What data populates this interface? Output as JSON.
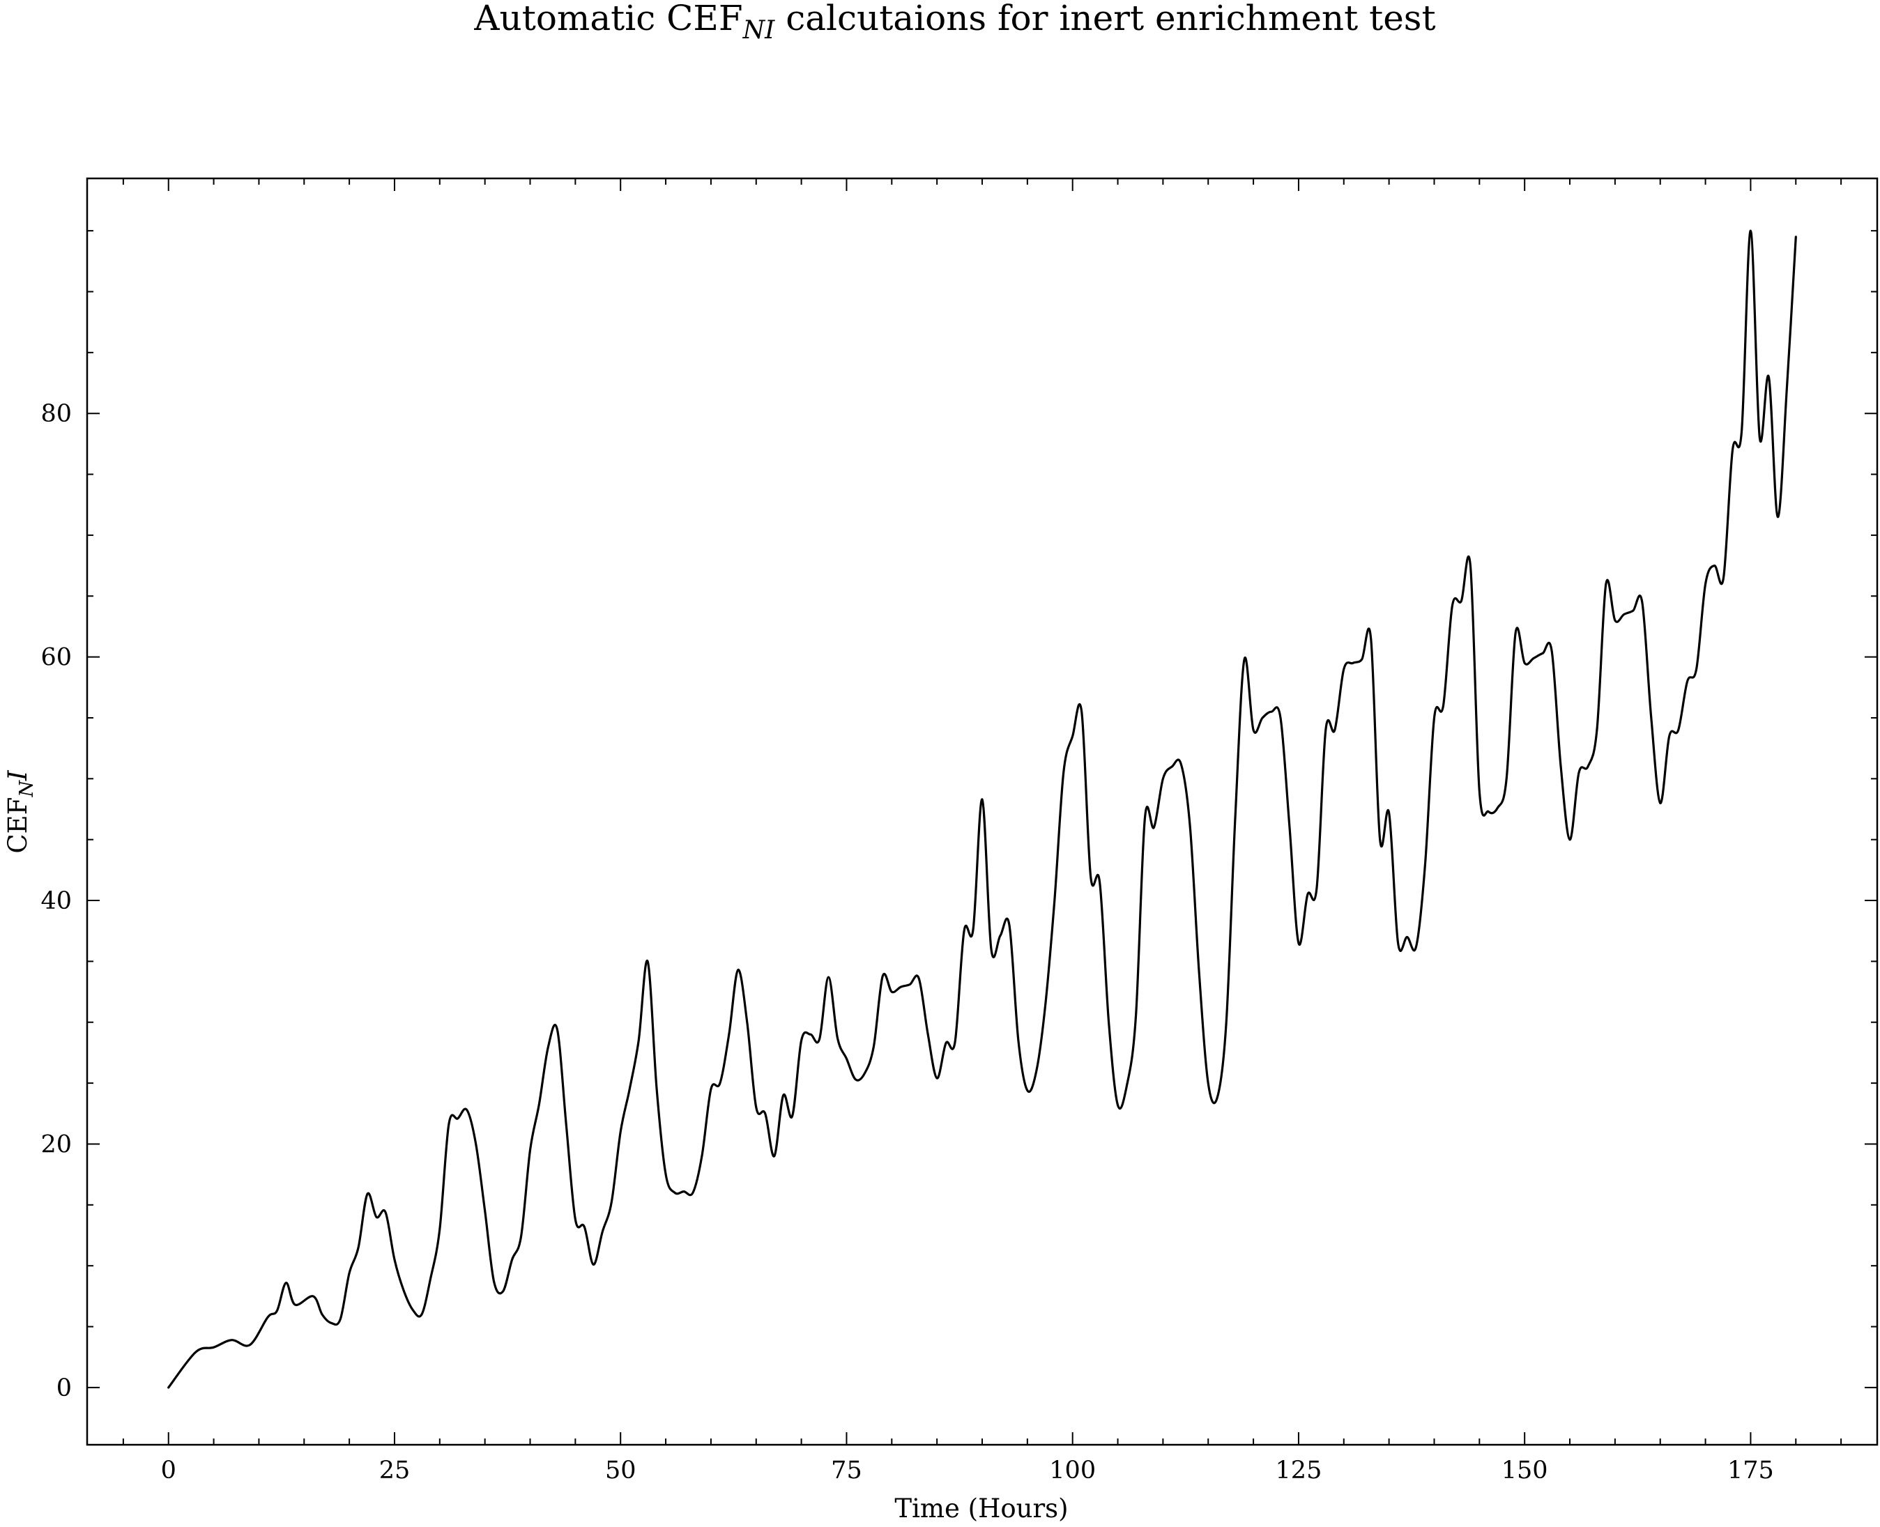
{
  "chart_data": {
    "type": "line",
    "title": "Automatic CEF",
    "title_subscript": "NI",
    "title_suffix": " calcutaions for inert enrichment test",
    "xlabel": "Time (Hours)",
    "ylabel": "CEF",
    "ylabel_subscript": "N",
    "ylabel_suffix": "I",
    "xlim": [
      -9,
      189
    ],
    "ylim": [
      -4.7,
      99.3
    ],
    "xticks": [
      0,
      25,
      50,
      75,
      100,
      125,
      150,
      175
    ],
    "yticks": [
      0,
      20,
      40,
      60,
      80
    ],
    "grid": false,
    "legend": "none",
    "series": [
      {
        "color": "#000000",
        "points": [
          [
            0,
            0
          ],
          [
            3,
            2.9
          ],
          [
            5,
            3.3
          ],
          [
            7,
            3.9
          ],
          [
            9,
            3.5
          ],
          [
            11,
            5.8
          ],
          [
            12,
            6.3
          ],
          [
            13,
            8.6
          ],
          [
            14,
            6.8
          ],
          [
            16,
            7.5
          ],
          [
            17,
            6.0
          ],
          [
            18,
            5.3
          ],
          [
            19,
            5.6
          ],
          [
            20,
            9.4
          ],
          [
            21,
            11.5
          ],
          [
            22,
            15.9
          ],
          [
            23,
            14.0
          ],
          [
            24,
            14.4
          ],
          [
            25,
            10.5
          ],
          [
            26,
            8.0
          ],
          [
            27,
            6.4
          ],
          [
            28,
            6.0
          ],
          [
            29,
            9.0
          ],
          [
            30,
            13.0
          ],
          [
            31,
            21.6
          ],
          [
            32,
            22.1
          ],
          [
            33,
            22.8
          ],
          [
            34,
            20.0
          ],
          [
            35,
            14.5
          ],
          [
            36,
            8.7
          ],
          [
            37,
            7.9
          ],
          [
            38,
            10.5
          ],
          [
            39,
            12.4
          ],
          [
            40,
            19.5
          ],
          [
            41,
            23.3
          ],
          [
            42,
            28.0
          ],
          [
            43,
            29.4
          ],
          [
            44,
            21.5
          ],
          [
            45,
            13.8
          ],
          [
            46,
            13.2
          ],
          [
            47,
            10.1
          ],
          [
            48,
            12.8
          ],
          [
            49,
            15.2
          ],
          [
            50,
            21.0
          ],
          [
            51,
            24.5
          ],
          [
            52,
            28.5
          ],
          [
            53,
            35.0
          ],
          [
            54,
            24.5
          ],
          [
            55,
            17.5
          ],
          [
            56,
            16.0
          ],
          [
            57,
            16.1
          ],
          [
            58,
            16.0
          ],
          [
            59,
            19.0
          ],
          [
            60,
            24.5
          ],
          [
            61,
            25.0
          ],
          [
            62,
            29.0
          ],
          [
            63,
            34.3
          ],
          [
            64,
            30.0
          ],
          [
            65,
            23.0
          ],
          [
            66,
            22.5
          ],
          [
            67,
            19.0
          ],
          [
            68,
            24.0
          ],
          [
            69,
            22.3
          ],
          [
            70,
            28.5
          ],
          [
            71,
            29.0
          ],
          [
            72,
            28.6
          ],
          [
            73,
            33.7
          ],
          [
            74,
            28.7
          ],
          [
            75,
            27.0
          ],
          [
            76,
            25.3
          ],
          [
            77,
            25.8
          ],
          [
            78,
            28.0
          ],
          [
            79,
            33.8
          ],
          [
            80,
            32.5
          ],
          [
            81,
            32.9
          ],
          [
            82,
            33.1
          ],
          [
            83,
            33.6
          ],
          [
            84,
            29.0
          ],
          [
            85,
            25.4
          ],
          [
            86,
            28.3
          ],
          [
            87,
            28.4
          ],
          [
            88,
            37.5
          ],
          [
            89,
            37.6
          ],
          [
            90,
            48.3
          ],
          [
            91,
            36.0
          ],
          [
            92,
            37.1
          ],
          [
            93,
            38.0
          ],
          [
            94,
            28.5
          ],
          [
            95,
            24.4
          ],
          [
            96,
            26.0
          ],
          [
            97,
            31.5
          ],
          [
            98,
            40.0
          ],
          [
            99,
            50.5
          ],
          [
            100,
            53.5
          ],
          [
            101,
            55.5
          ],
          [
            102,
            42.0
          ],
          [
            103,
            41.5
          ],
          [
            104,
            30.0
          ],
          [
            105,
            23.2
          ],
          [
            106,
            24.8
          ],
          [
            107,
            30.5
          ],
          [
            108,
            46.8
          ],
          [
            109,
            46.0
          ],
          [
            110,
            50.0
          ],
          [
            111,
            51.0
          ],
          [
            112,
            51.2
          ],
          [
            113,
            46.0
          ],
          [
            114,
            34.0
          ],
          [
            115,
            25.0
          ],
          [
            116,
            23.8
          ],
          [
            117,
            30.0
          ],
          [
            118,
            47.0
          ],
          [
            119,
            59.8
          ],
          [
            120,
            54.0
          ],
          [
            121,
            55.0
          ],
          [
            122,
            55.5
          ],
          [
            123,
            55.0
          ],
          [
            124,
            46.0
          ],
          [
            125,
            36.5
          ],
          [
            126,
            40.5
          ],
          [
            127,
            41.0
          ],
          [
            128,
            54.0
          ],
          [
            129,
            54.0
          ],
          [
            130,
            59.0
          ],
          [
            131,
            59.5
          ],
          [
            132,
            59.8
          ],
          [
            133,
            61.5
          ],
          [
            134,
            45.0
          ],
          [
            135,
            47.2
          ],
          [
            136,
            36.5
          ],
          [
            137,
            37.0
          ],
          [
            138,
            36.2
          ],
          [
            139,
            43.0
          ],
          [
            140,
            55.0
          ],
          [
            141,
            56.0
          ],
          [
            142,
            64.2
          ],
          [
            143,
            64.6
          ],
          [
            144,
            67.5
          ],
          [
            145,
            49.0
          ],
          [
            146,
            47.3
          ],
          [
            147,
            47.6
          ],
          [
            148,
            50.0
          ],
          [
            149,
            62.0
          ],
          [
            150,
            59.5
          ],
          [
            151,
            59.9
          ],
          [
            152,
            60.3
          ],
          [
            153,
            60.5
          ],
          [
            154,
            51.0
          ],
          [
            155,
            45.0
          ],
          [
            156,
            50.5
          ],
          [
            157,
            51.0
          ],
          [
            158,
            54.0
          ],
          [
            159,
            66.0
          ],
          [
            160,
            63.0
          ],
          [
            161,
            63.5
          ],
          [
            162,
            63.8
          ],
          [
            163,
            64.5
          ],
          [
            164,
            55.0
          ],
          [
            165,
            48.0
          ],
          [
            166,
            53.5
          ],
          [
            167,
            54.0
          ],
          [
            168,
            58.0
          ],
          [
            169,
            59.0
          ],
          [
            170,
            66.0
          ],
          [
            171,
            67.5
          ],
          [
            172,
            66.5
          ],
          [
            173,
            77.0
          ],
          [
            174,
            78.5
          ],
          [
            175,
            95.0
          ],
          [
            176,
            78.0
          ],
          [
            177,
            83.0
          ],
          [
            178,
            71.5
          ],
          [
            179,
            82.0
          ],
          [
            180,
            94.5
          ]
        ]
      }
    ]
  }
}
